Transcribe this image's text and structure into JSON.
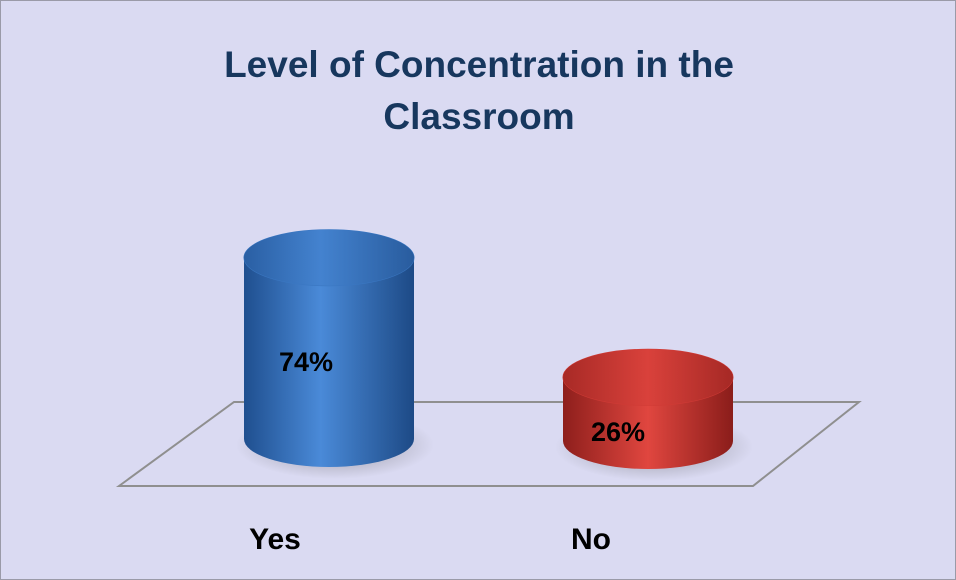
{
  "chart_data": {
    "type": "bar3d",
    "title": "Level of Concentration in the Classroom",
    "categories": [
      "Yes",
      "No"
    ],
    "values": [
      74,
      26
    ],
    "value_labels": [
      "74%",
      "26%"
    ],
    "colors": [
      "#3a77c2",
      "#cf3a35"
    ]
  }
}
